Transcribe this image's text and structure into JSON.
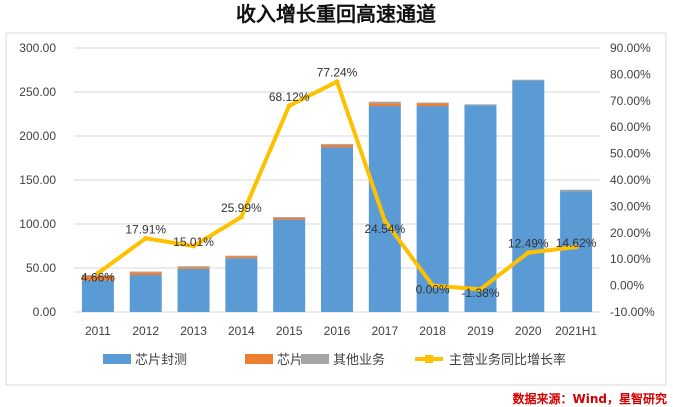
{
  "chart_data": {
    "type": "bar",
    "title": "收入增长重回高速通道",
    "categories": [
      "2011",
      "2012",
      "2013",
      "2014",
      "2015",
      "2016",
      "2017",
      "2018",
      "2019",
      "2020",
      "2021H1"
    ],
    "series": [
      {
        "name": "芯片封测",
        "kind": "bar",
        "axis": "left",
        "color": "#5b9bd5",
        "values": [
          36,
          42,
          49,
          61,
          105,
          187,
          234,
          234,
          235,
          263,
          137
        ]
      },
      {
        "name": "芯片",
        "kind": "bar",
        "axis": "left",
        "color": "#ed7d31",
        "values": [
          5,
          3,
          2,
          2,
          2,
          3,
          3,
          3,
          0,
          0,
          0
        ]
      },
      {
        "name": "其他业务",
        "kind": "bar",
        "axis": "left",
        "color": "#a5a5a5",
        "values": [
          1,
          1,
          1,
          1,
          1,
          1,
          2,
          1,
          1,
          1,
          2
        ]
      },
      {
        "name": "主营业务同比增长率",
        "kind": "line",
        "axis": "right",
        "color": "#ffc000",
        "values": [
          4.66,
          17.91,
          15.01,
          25.99,
          68.12,
          77.24,
          24.54,
          0.0,
          -1.38,
          12.49,
          14.62
        ],
        "labels": [
          "4.66%",
          "17.91%",
          "15.01%",
          "25.99%",
          "68.12%",
          "77.24%",
          "24.54%",
          "0.00%",
          "-1.38%",
          "12.49%",
          "14.62%"
        ]
      }
    ],
    "y_left": {
      "min": 0,
      "max": 300,
      "step": 50,
      "ticks": [
        "0.00",
        "50.00",
        "100.00",
        "150.00",
        "200.00",
        "250.00",
        "300.00"
      ]
    },
    "y_right": {
      "min": -10,
      "max": 90,
      "step": 10,
      "ticks": [
        "-10.00%",
        "0.00%",
        "10.00%",
        "20.00%",
        "30.00%",
        "40.00%",
        "50.00%",
        "60.00%",
        "70.00%",
        "80.00%",
        "90.00%"
      ]
    },
    "grid": true,
    "legend_position": "bottom",
    "source": "数据来源：Wind，星智研究"
  }
}
